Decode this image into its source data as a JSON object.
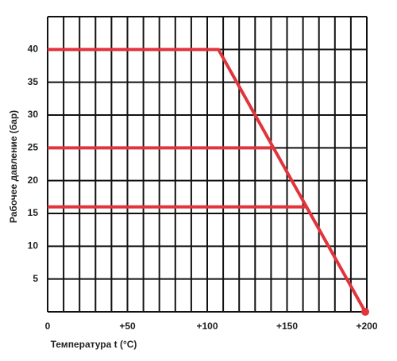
{
  "chart_data": {
    "type": "line",
    "xlabel": "Температура t (°C)",
    "ylabel": "Рабочее давление (бар)",
    "xlim": [
      0,
      200
    ],
    "ylim": [
      0,
      45
    ],
    "xticks": [
      0,
      {
        "value": 50,
        "label": "+50"
      },
      {
        "value": 100,
        "label": "+100"
      },
      {
        "value": 150,
        "label": "+150"
      },
      {
        "value": 200,
        "label": "+200"
      }
    ],
    "x_grid": [
      0,
      10,
      20,
      30,
      40,
      50,
      60,
      70,
      80,
      90,
      100,
      110,
      120,
      130,
      140,
      150,
      160,
      170,
      180,
      190,
      200
    ],
    "yticks": [
      5,
      10,
      15,
      20,
      25,
      30,
      35,
      40
    ],
    "grid": true,
    "series": [
      {
        "color": "#e1343c",
        "x": [
          0,
          107,
          199
        ],
        "values": [
          40,
          40,
          0
        ]
      },
      {
        "color": "#e1343c",
        "x": [
          0,
          141
        ],
        "values": [
          25,
          25
        ]
      },
      {
        "color": "#e1343c",
        "x": [
          0,
          162
        ],
        "values": [
          16,
          16
        ]
      }
    ]
  }
}
